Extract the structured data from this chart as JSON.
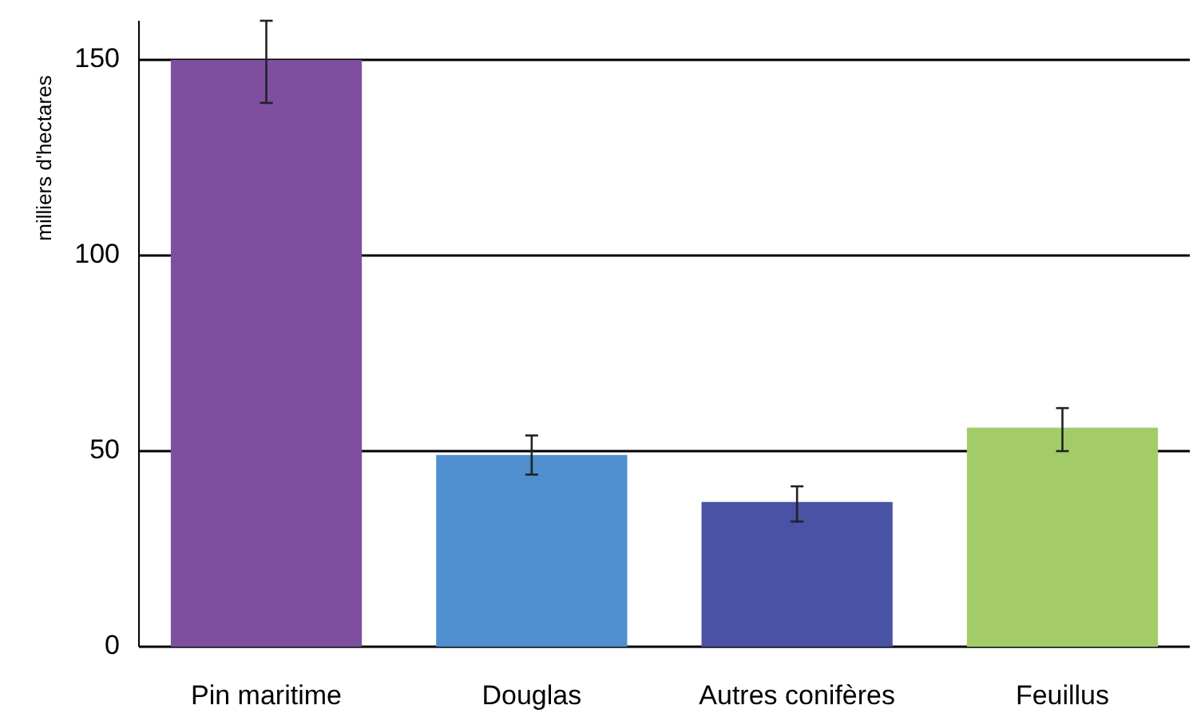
{
  "chart_data": {
    "type": "bar",
    "ylabel": "milliers d'hectares",
    "categories": [
      "Pin maritime",
      "Douglas",
      "Autres conifères",
      "Feuillus"
    ],
    "values": [
      150,
      49,
      37,
      56
    ],
    "colors": [
      "#7f4f9f",
      "#4f8fcf",
      "#4a52a5",
      "#a3cc68"
    ],
    "errors": [
      [
        139,
        160
      ],
      [
        44,
        54
      ],
      [
        32,
        41
      ],
      [
        50,
        61
      ]
    ],
    "ylim": [
      0,
      160
    ],
    "yticks": [
      0,
      50,
      100,
      150
    ],
    "grid": "y"
  }
}
